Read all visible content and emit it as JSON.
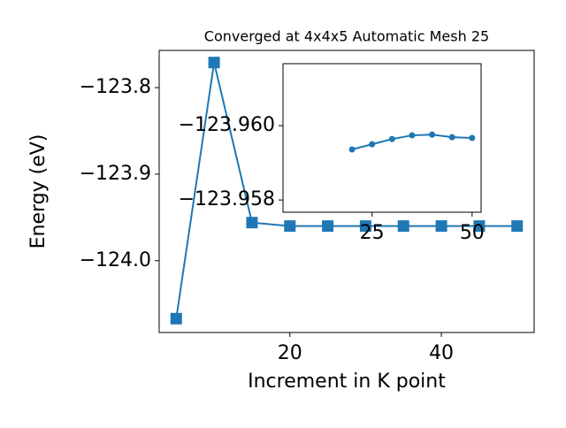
{
  "chart_data": [
    {
      "type": "line",
      "title": "Converged at 4x4x5 Automatic Mesh 25",
      "x_label": "Increment in K point",
      "y_label": "Energy (eV)",
      "x": [
        5,
        10,
        15,
        20,
        25,
        30,
        35,
        40,
        45,
        50
      ],
      "series": [
        {
          "color": "#1f77b4",
          "marker": "square",
          "values": [
            -124.067,
            -123.771,
            -123.956,
            -123.96,
            -123.96,
            -123.96,
            -123.96,
            -123.96,
            -123.96,
            -123.96
          ]
        }
      ],
      "xlim": [
        2.75,
        52.25
      ],
      "xticks": [
        20,
        40
      ],
      "ylim": [
        -124.083,
        -123.757
      ],
      "yticks": [
        {
          "value": -123.8,
          "label": "−123.8"
        },
        {
          "value": -123.9,
          "label": "−123.9"
        },
        {
          "value": -124.0,
          "label": "−124.0"
        }
      ]
    },
    {
      "type": "line",
      "x": [
        20,
        25,
        30,
        35,
        40,
        45,
        50
      ],
      "series": [
        {
          "color": "#1f77b4",
          "marker": "circle",
          "values": [
            -123.95936,
            -123.9595,
            -123.95964,
            -123.95974,
            -123.95976,
            -123.95969,
            -123.95967
          ]
        }
      ],
      "xlim": [
        2.75,
        52.25
      ],
      "xticks": [
        25,
        50
      ],
      "ylim": [
        -123.95767,
        -123.96167
      ],
      "yticks": [
        {
          "value": -123.96,
          "label": "−123.960"
        },
        {
          "value": -123.958,
          "label": "−123.958"
        }
      ]
    }
  ]
}
